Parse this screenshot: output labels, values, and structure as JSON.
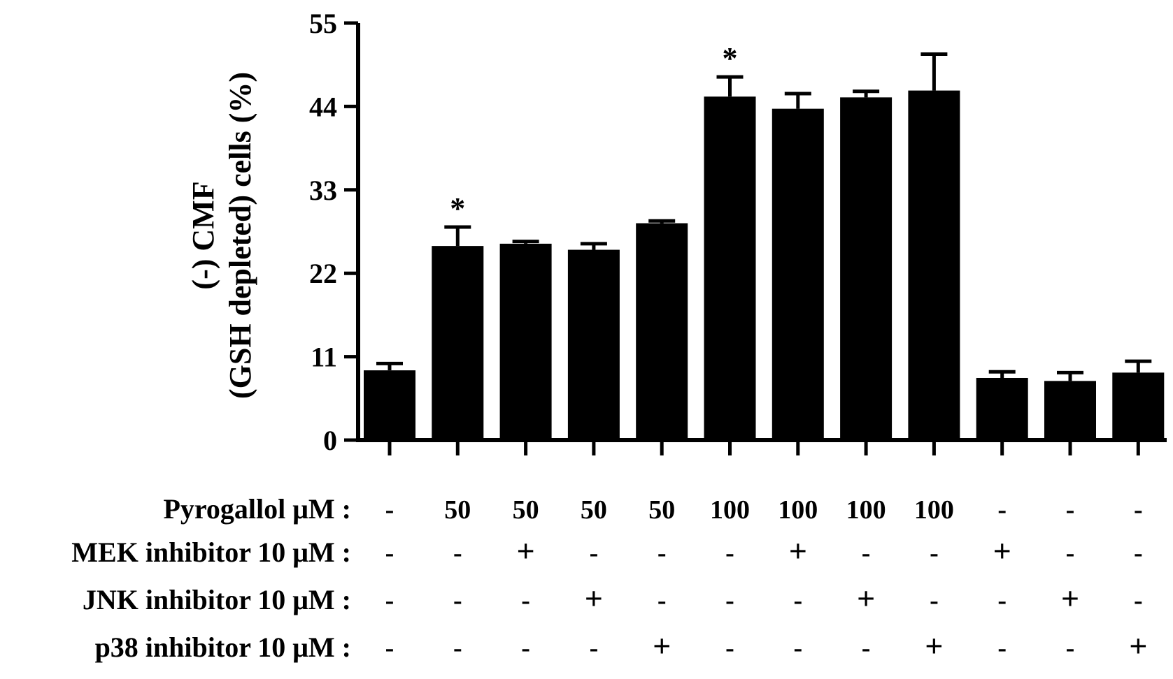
{
  "chart_data": {
    "type": "bar",
    "ylabel_line1": "(-) CMF",
    "ylabel_line2": "(GSH depleted) cells (%)",
    "ylim": [
      0,
      55
    ],
    "yticks": [
      0,
      11,
      22,
      33,
      44,
      55
    ],
    "grid": false,
    "legend": "none",
    "bar_color": "#000000",
    "values": [
      9.2,
      25.6,
      25.9,
      25.1,
      28.6,
      45.3,
      43.7,
      45.2,
      46.1,
      8.2,
      7.8,
      8.9
    ],
    "errors": [
      0.9,
      2.5,
      0.3,
      0.8,
      0.3,
      2.6,
      2.0,
      0.8,
      4.8,
      0.8,
      1.1,
      1.5
    ],
    "significance": [
      "",
      "*",
      "",
      "",
      "",
      "*",
      "",
      "",
      "",
      "",
      "",
      ""
    ],
    "treatments": [
      {
        "label": "Pyrogallol μM :",
        "values": [
          "-",
          "50",
          "50",
          "50",
          "50",
          "100",
          "100",
          "100",
          "100",
          "-",
          "-",
          "-"
        ]
      },
      {
        "label": "MEK inhibitor 10 μM :",
        "values": [
          "-",
          "-",
          "+",
          "-",
          "-",
          "-",
          "+",
          "-",
          "-",
          "+",
          "-",
          "-"
        ]
      },
      {
        "label": "JNK inhibitor 10 μM :",
        "values": [
          "-",
          "-",
          "-",
          "+",
          "-",
          "-",
          "-",
          "+",
          "-",
          "-",
          "+",
          "-"
        ]
      },
      {
        "label": "p38 inhibitor 10 μM :",
        "values": [
          "-",
          "-",
          "-",
          "-",
          "+",
          "-",
          "-",
          "-",
          "+",
          "-",
          "-",
          "+"
        ]
      }
    ]
  }
}
